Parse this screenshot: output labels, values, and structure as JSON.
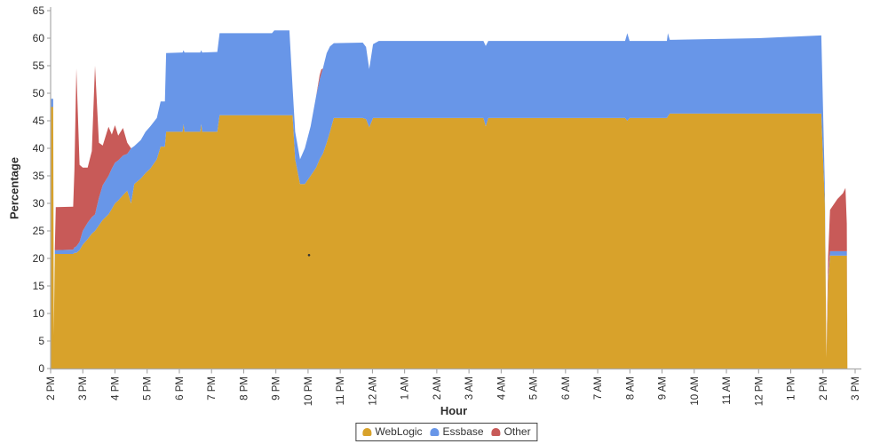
{
  "legend": {
    "items": [
      {
        "label": "WebLogic",
        "color": "#D8A22B"
      },
      {
        "label": "Essbase",
        "color": "#6896E8"
      },
      {
        "label": "Other",
        "color": "#C85A58"
      }
    ]
  },
  "chart_data": {
    "type": "area",
    "stacked": true,
    "title": "",
    "xlabel": "Hour",
    "ylabel": "Percentage",
    "ylim": [
      0,
      65
    ],
    "grid": false,
    "legend_position": "bottom-center",
    "y_ticks": [
      0,
      5,
      10,
      15,
      20,
      25,
      30,
      35,
      40,
      45,
      50,
      55,
      60,
      65
    ],
    "x_tick_labels": [
      "2 PM",
      "3 PM",
      "4 PM",
      "5 PM",
      "6 PM",
      "7 PM",
      "8 PM",
      "9 PM",
      "10 PM",
      "11 PM",
      "12 AM",
      "1 AM",
      "2 AM",
      "3 AM",
      "4 AM",
      "5 AM",
      "6 AM",
      "7 AM",
      "8 AM",
      "9 AM",
      "10 AM",
      "11 AM",
      "12 PM",
      "1 PM",
      "2 PM",
      "3 PM"
    ],
    "x_hours_total": 25,
    "series_meta": [
      {
        "name": "WebLogic",
        "color": "#D8A22B"
      },
      {
        "name": "Essbase",
        "color": "#6896E8"
      },
      {
        "name": "Other",
        "color": "#C85A58"
      }
    ],
    "points_columns": [
      "hours_since_2pm",
      "WebLogic",
      "Essbase",
      "Other"
    ],
    "points": [
      [
        0.0,
        47.5,
        1.5,
        0
      ],
      [
        0.08,
        47.5,
        1.5,
        0
      ],
      [
        0.1,
        6,
        0,
        0
      ],
      [
        0.13,
        20.8,
        0.7,
        0
      ],
      [
        0.16,
        20.8,
        0.7,
        7.8
      ],
      [
        0.7,
        20.8,
        0.8,
        7.8
      ],
      [
        0.74,
        21,
        1.0,
        14
      ],
      [
        0.8,
        21,
        1.2,
        32.3
      ],
      [
        0.9,
        21.5,
        1.5,
        14
      ],
      [
        1.0,
        22.5,
        2.5,
        11.5
      ],
      [
        1.15,
        23.5,
        3.0,
        10.0
      ],
      [
        1.28,
        24.5,
        3.0,
        12
      ],
      [
        1.38,
        25,
        3.0,
        27
      ],
      [
        1.5,
        26,
        5.0,
        10
      ],
      [
        1.62,
        27,
        6.3,
        7.2
      ],
      [
        1.8,
        28,
        7.0,
        8.9
      ],
      [
        1.9,
        29,
        7.3,
        6.2
      ],
      [
        2.0,
        30,
        7.4,
        6.8
      ],
      [
        2.1,
        30.5,
        7.3,
        4.5
      ],
      [
        2.25,
        31.5,
        7.2,
        5.0
      ],
      [
        2.38,
        32.3,
        6.7,
        2.0
      ],
      [
        2.5,
        30,
        10,
        0
      ],
      [
        2.6,
        33.5,
        6.9,
        0
      ],
      [
        2.8,
        34.5,
        7.0,
        0
      ],
      [
        2.95,
        35.5,
        7.5,
        0
      ],
      [
        3.1,
        36.3,
        7.7,
        0
      ],
      [
        3.3,
        38,
        7.5,
        0
      ],
      [
        3.42,
        40.3,
        8.2,
        0
      ],
      [
        3.55,
        40.3,
        8.2,
        0
      ],
      [
        3.59,
        43,
        14.3,
        0
      ],
      [
        4.1,
        43,
        14.4,
        0
      ],
      [
        4.13,
        44.4,
        13.4,
        0
      ],
      [
        4.16,
        43,
        14.4,
        0
      ],
      [
        4.65,
        43,
        14.4,
        0
      ],
      [
        4.68,
        44.4,
        13.4,
        0
      ],
      [
        4.71,
        43,
        14.4,
        0
      ],
      [
        5.18,
        43,
        14.5,
        0
      ],
      [
        5.25,
        46,
        14.9,
        0
      ],
      [
        6.88,
        46,
        14.9,
        0
      ],
      [
        6.95,
        46,
        15.4,
        0
      ],
      [
        7.42,
        46,
        15.4,
        0
      ],
      [
        7.52,
        46,
        5,
        0
      ],
      [
        7.6,
        38,
        5,
        0
      ],
      [
        7.75,
        33.5,
        4.5,
        0
      ],
      [
        7.9,
        33.5,
        6.5,
        0
      ],
      [
        8.08,
        35,
        9,
        0
      ],
      [
        8.25,
        36.5,
        13,
        0
      ],
      [
        8.36,
        38,
        14.5,
        0.8
      ],
      [
        8.41,
        38.5,
        15,
        0.8
      ],
      [
        8.46,
        39,
        15.5,
        0
      ],
      [
        8.58,
        41,
        16.3,
        0
      ],
      [
        8.68,
        43,
        15.5,
        0
      ],
      [
        8.8,
        45.5,
        13.6,
        0
      ],
      [
        9.7,
        45.5,
        13.7,
        0
      ],
      [
        9.8,
        45.3,
        13.1,
        0
      ],
      [
        9.9,
        43.8,
        10.6,
        0
      ],
      [
        10.02,
        45.5,
        13.4,
        0
      ],
      [
        10.2,
        45.5,
        14.0,
        0
      ],
      [
        13.45,
        45.5,
        14.0,
        0
      ],
      [
        13.52,
        44.0,
        14.6,
        0
      ],
      [
        13.6,
        45.5,
        14.0,
        0
      ],
      [
        17.85,
        45.5,
        14.0,
        0
      ],
      [
        17.92,
        45.0,
        15.9,
        0
      ],
      [
        17.99,
        45.5,
        14.0,
        0
      ],
      [
        19.15,
        45.5,
        14.0,
        0
      ],
      [
        19.18,
        45.8,
        15.1,
        0
      ],
      [
        19.24,
        46.3,
        13.4,
        0
      ],
      [
        22.0,
        46.3,
        13.7,
        0
      ],
      [
        23.95,
        46.3,
        14.2,
        0
      ],
      [
        24.06,
        30,
        3,
        0
      ],
      [
        24.11,
        2,
        0,
        0
      ],
      [
        24.16,
        16,
        0.5,
        4
      ],
      [
        24.22,
        20.5,
        0.8,
        7.5
      ],
      [
        24.45,
        20.5,
        0.8,
        9.5
      ],
      [
        24.62,
        20.5,
        0.8,
        10.5
      ],
      [
        24.7,
        20.5,
        0.8,
        11.5
      ],
      [
        24.74,
        20.5,
        0.8,
        5
      ],
      [
        24.76,
        0,
        0,
        0
      ]
    ],
    "stray_dot": {
      "hours_since_2pm": 8.03,
      "value": 20.6
    }
  }
}
